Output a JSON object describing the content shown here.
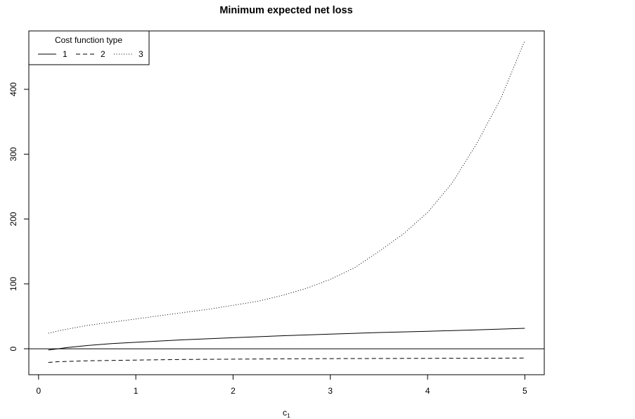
{
  "chart_data": {
    "type": "line",
    "title": "Minimum expected net loss",
    "xlabel_main": "c",
    "xlabel_sub": "1",
    "ylabel": "",
    "xlim": [
      -0.1,
      5.2
    ],
    "ylim": [
      -40,
      490
    ],
    "x_ticks": [
      "0",
      "1",
      "2",
      "3",
      "4",
      "5"
    ],
    "y_ticks": [
      "0",
      "100",
      "200",
      "300",
      "400"
    ],
    "hline": 0,
    "grid": false,
    "legend": {
      "title": "Cost function type",
      "position": "top-left",
      "entries": [
        {
          "label": "1",
          "dash": "solid"
        },
        {
          "label": "2",
          "dash": "dashed"
        },
        {
          "label": "3",
          "dash": "dotted"
        }
      ]
    },
    "series": [
      {
        "dash": "solid",
        "x": [
          0.1,
          0.2,
          0.3,
          0.5,
          0.75,
          1,
          1.5,
          2,
          2.5,
          3,
          3.5,
          4,
          4.5,
          5
        ],
        "y": [
          -2,
          0,
          2,
          5,
          8,
          10,
          14,
          17,
          20,
          22.5,
          25,
          27,
          29,
          31.5
        ]
      },
      {
        "dash": "dashed",
        "x": [
          0.1,
          0.2,
          0.3,
          0.5,
          0.75,
          1,
          1.5,
          2,
          2.5,
          3,
          3.5,
          4,
          4.5,
          5
        ],
        "y": [
          -21,
          -20,
          -19.5,
          -18.5,
          -18,
          -17.5,
          -16.5,
          -16,
          -15.5,
          -15.2,
          -15,
          -14.8,
          -14.6,
          -14.3
        ]
      },
      {
        "dash": "dotted",
        "x": [
          0.1,
          0.25,
          0.5,
          0.75,
          1,
          1.25,
          1.5,
          1.75,
          2,
          2.25,
          2.5,
          2.75,
          3,
          3.25,
          3.5,
          3.75,
          4,
          4.25,
          4.5,
          4.75,
          5
        ],
        "y": [
          24,
          29,
          36,
          41,
          46,
          51,
          56,
          61,
          67,
          73,
          82,
          93,
          107,
          125,
          150,
          177,
          210,
          255,
          315,
          385,
          475
        ]
      }
    ]
  }
}
